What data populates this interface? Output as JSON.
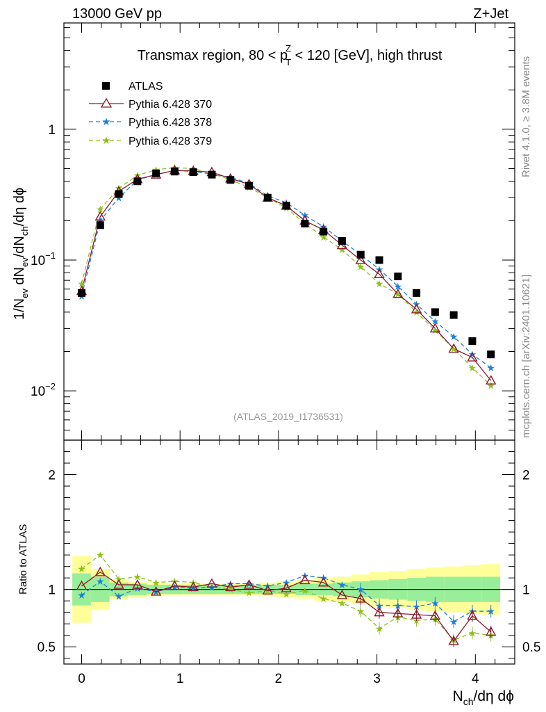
{
  "header": {
    "left": "13000 GeV pp",
    "right": "Z+Jet"
  },
  "side_text": {
    "top": "Rivet 4.1.0, ≥ 3.8M events",
    "bottom": "mcplots.cern.ch [arXiv:2401.10621]"
  },
  "chart_data": [
    {
      "type": "line",
      "panel": "main",
      "title": "Transmax region, 80 < p_T^Z < 120 [GeV], high thrust",
      "title_parts": {
        "pre": "Transmax region, 80 < p",
        "sup": "Z",
        "sub": "T",
        "post": " < 120 [GeV], high thrust"
      },
      "ylabel": "1/N_ev dN_ev/dN_ch/dη dϕ",
      "ylabel_parts": {
        "a": "1/N",
        "a_sub": "ev",
        "b": " dN",
        "b_sub": "ev",
        "c": "/dN",
        "c_sub": "ch",
        "d": "/dη dϕ"
      },
      "yscale": "log",
      "ylim": [
        0.0042,
        6.5
      ],
      "xlim": [
        -0.18,
        4.4
      ],
      "yticks": [
        {
          "v": 1,
          "label": "1"
        },
        {
          "v": 0.1,
          "base": "10",
          "exp": "−1"
        },
        {
          "v": 0.01,
          "base": "10",
          "exp": "−2"
        }
      ],
      "annotation": "(ATLAS_2019_I1736531)",
      "legend_position": "top-left",
      "x": [
        0.0,
        0.189,
        0.378,
        0.567,
        0.756,
        0.945,
        1.134,
        1.323,
        1.512,
        1.701,
        1.89,
        2.079,
        2.268,
        2.457,
        2.646,
        2.835,
        3.024,
        3.213,
        3.402,
        3.591,
        3.78,
        3.969,
        4.158
      ],
      "series": [
        {
          "name": "ATLAS",
          "marker": "square",
          "color": "#000000",
          "values": [
            0.056,
            0.185,
            0.32,
            0.4,
            0.46,
            0.475,
            0.47,
            0.45,
            0.41,
            0.37,
            0.3,
            0.26,
            0.19,
            0.165,
            0.14,
            0.11,
            0.1,
            0.075,
            0.056,
            0.04,
            0.038,
            0.024,
            0.019
          ]
        },
        {
          "name": "Pythia 6.428 370",
          "marker": "triangle",
          "color": "#8b1a2b",
          "dash": "",
          "values": [
            0.058,
            0.215,
            0.335,
            0.415,
            0.45,
            0.485,
            0.48,
            0.47,
            0.42,
            0.38,
            0.3,
            0.26,
            0.2,
            0.17,
            0.13,
            0.1,
            0.078,
            0.055,
            0.042,
            0.03,
            0.021,
            0.018,
            0.012
          ]
        },
        {
          "name": "Pythia 6.428 378",
          "marker": "star",
          "color": "#1e7fd9",
          "dash": "6,4",
          "values": [
            0.053,
            0.2,
            0.3,
            0.41,
            0.45,
            0.485,
            0.475,
            0.455,
            0.43,
            0.385,
            0.31,
            0.275,
            0.22,
            0.18,
            0.14,
            0.11,
            0.085,
            0.063,
            0.046,
            0.034,
            0.026,
            0.019,
            0.015
          ]
        },
        {
          "name": "Pythia 6.428 379",
          "marker": "star",
          "color": "#8cc21d",
          "dash": "6,4",
          "values": [
            0.066,
            0.245,
            0.355,
            0.445,
            0.49,
            0.51,
            0.5,
            0.46,
            0.41,
            0.36,
            0.3,
            0.25,
            0.19,
            0.15,
            0.12,
            0.089,
            0.066,
            0.055,
            0.04,
            0.029,
            0.021,
            0.015,
            0.011
          ]
        }
      ]
    },
    {
      "type": "line",
      "panel": "ratio",
      "ylabel": "Ratio to ATLAS",
      "xlabel": "N_ch/dη dϕ",
      "xlabel_parts": {
        "a": "N",
        "a_sub": "ch",
        "b": "/dη dϕ"
      },
      "ylim": [
        0.35,
        2.3
      ],
      "xlim": [
        -0.18,
        4.4
      ],
      "yticks": [
        {
          "v": 0.5,
          "label": "0.5"
        },
        {
          "v": 1,
          "label": "1"
        },
        {
          "v": 2,
          "label": "2"
        }
      ],
      "xticks": [
        {
          "v": 0,
          "label": "0"
        },
        {
          "v": 1,
          "label": "1"
        },
        {
          "v": 2,
          "label": "2"
        },
        {
          "v": 3,
          "label": "3"
        },
        {
          "v": 4,
          "label": "4"
        }
      ],
      "band_inner": [
        0.14,
        0.11,
        0.06,
        0.05,
        0.04,
        0.04,
        0.04,
        0.04,
        0.04,
        0.04,
        0.04,
        0.04,
        0.05,
        0.05,
        0.06,
        0.07,
        0.08,
        0.09,
        0.1,
        0.11,
        0.11,
        0.11,
        0.11
      ],
      "band_outer": [
        0.29,
        0.18,
        0.09,
        0.07,
        0.06,
        0.05,
        0.05,
        0.05,
        0.05,
        0.05,
        0.06,
        0.07,
        0.08,
        0.1,
        0.11,
        0.13,
        0.15,
        0.16,
        0.18,
        0.19,
        0.2,
        0.21,
        0.22
      ],
      "series": [
        {
          "name": "Pythia 6.428 370",
          "marker": "triangle",
          "color": "#8b1a2b",
          "dash": "",
          "values": [
            1.03,
            1.15,
            1.04,
            1.04,
            0.98,
            1.03,
            1.02,
            1.05,
            1.02,
            1.04,
            0.99,
            1.01,
            1.08,
            1.06,
            0.95,
            0.92,
            0.8,
            0.79,
            0.78,
            0.77,
            0.55,
            0.77,
            0.63
          ]
        },
        {
          "name": "Pythia 6.428 378",
          "marker": "star",
          "color": "#1e7fd9",
          "dash": "6,4",
          "values": [
            0.95,
            1.07,
            0.94,
            1.01,
            0.98,
            1.02,
            1.01,
            1.02,
            1.05,
            1.05,
            1.03,
            1.06,
            1.12,
            1.1,
            1.04,
            1.0,
            0.86,
            0.86,
            0.85,
            0.88,
            0.72,
            0.81,
            0.81
          ]
        },
        {
          "name": "Pythia 6.428 379",
          "marker": "star",
          "color": "#8cc21d",
          "dash": "6,4",
          "values": [
            1.18,
            1.3,
            1.09,
            1.11,
            1.06,
            1.07,
            1.06,
            1.02,
            1.0,
            0.97,
            0.99,
            0.96,
            0.99,
            0.92,
            0.88,
            0.81,
            0.66,
            0.76,
            0.73,
            0.74,
            0.56,
            0.62,
            0.6
          ]
        }
      ]
    }
  ]
}
